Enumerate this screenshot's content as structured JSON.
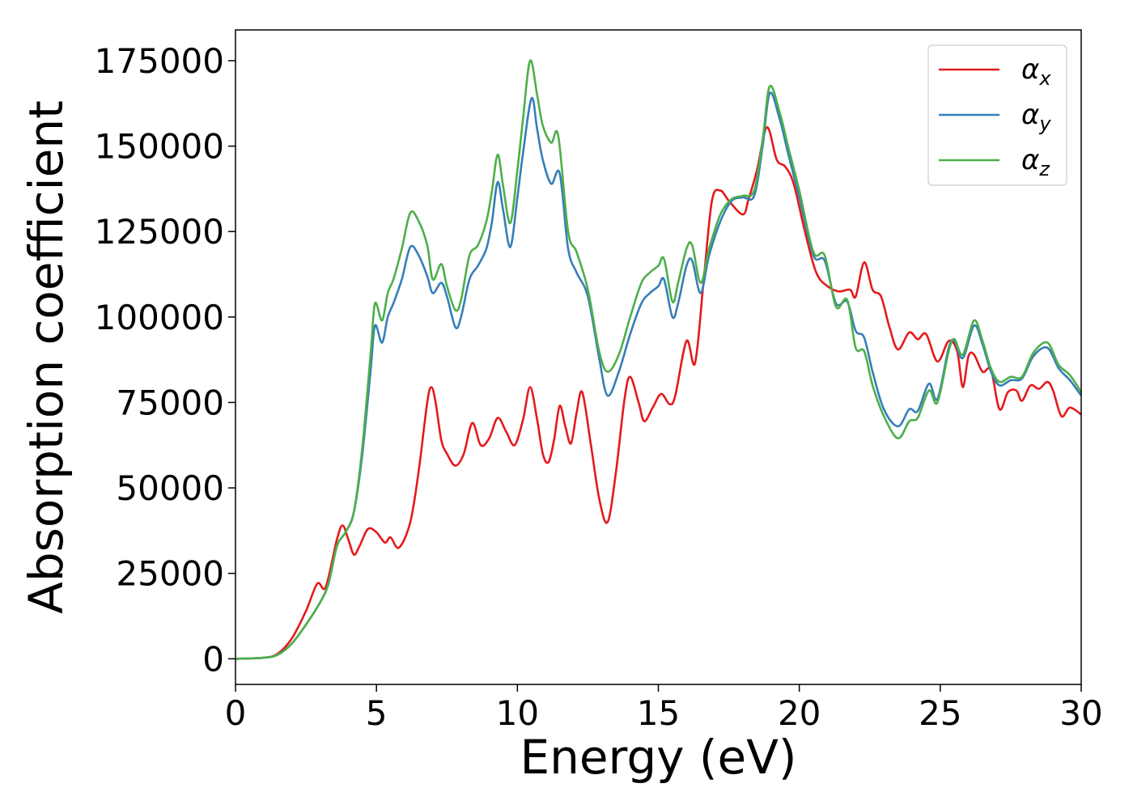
{
  "chart_data": {
    "type": "line",
    "xlabel": "Energy (eV)",
    "ylabel": "Absorption coefficient",
    "xlim": [
      0,
      30
    ],
    "ylim": [
      -7500,
      184000
    ],
    "xticks": [
      0,
      5,
      10,
      15,
      20,
      25,
      30
    ],
    "xtick_labels": [
      "0",
      "5",
      "10",
      "15",
      "20",
      "25",
      "30"
    ],
    "yticks": [
      0,
      25000,
      50000,
      75000,
      100000,
      125000,
      150000,
      175000
    ],
    "ytick_labels": [
      "0",
      "25000",
      "50000",
      "75000",
      "100000",
      "125000",
      "150000",
      "175000"
    ],
    "grid": false,
    "legend_position": "top-right",
    "series": [
      {
        "name": "α",
        "sub": "x",
        "color": "#e41a1c",
        "points": [
          [
            0,
            0
          ],
          [
            1,
            300
          ],
          [
            1.5,
            1500
          ],
          [
            2,
            6000
          ],
          [
            2.5,
            14000
          ],
          [
            2.9,
            22000
          ],
          [
            3.2,
            21000
          ],
          [
            3.6,
            35000
          ],
          [
            3.8,
            39000
          ],
          [
            4.0,
            35000
          ],
          [
            4.2,
            30500
          ],
          [
            4.4,
            33000
          ],
          [
            4.7,
            38000
          ],
          [
            5.0,
            37000
          ],
          [
            5.3,
            34000
          ],
          [
            5.5,
            35500
          ],
          [
            5.8,
            32500
          ],
          [
            6.2,
            40000
          ],
          [
            6.5,
            55000
          ],
          [
            6.8,
            75000
          ],
          [
            6.95,
            79500
          ],
          [
            7.1,
            75000
          ],
          [
            7.3,
            64000
          ],
          [
            7.5,
            60000
          ],
          [
            7.8,
            56500
          ],
          [
            8.1,
            60000
          ],
          [
            8.4,
            69000
          ],
          [
            8.7,
            62500
          ],
          [
            9.0,
            64500
          ],
          [
            9.3,
            70500
          ],
          [
            9.6,
            66500
          ],
          [
            9.9,
            62500
          ],
          [
            10.2,
            70000
          ],
          [
            10.45,
            79500
          ],
          [
            10.7,
            70000
          ],
          [
            10.9,
            60000
          ],
          [
            11.1,
            57500
          ],
          [
            11.3,
            64000
          ],
          [
            11.5,
            74000
          ],
          [
            11.7,
            68000
          ],
          [
            11.9,
            63000
          ],
          [
            12.1,
            72000
          ],
          [
            12.3,
            78000
          ],
          [
            12.6,
            63000
          ],
          [
            12.9,
            47000
          ],
          [
            13.2,
            40000
          ],
          [
            13.5,
            55000
          ],
          [
            13.8,
            76000
          ],
          [
            14.0,
            82500
          ],
          [
            14.3,
            75000
          ],
          [
            14.5,
            69500
          ],
          [
            14.8,
            73500
          ],
          [
            15.1,
            77500
          ],
          [
            15.4,
            74500
          ],
          [
            15.6,
            77000
          ],
          [
            16.0,
            93000
          ],
          [
            16.3,
            86500
          ],
          [
            16.6,
            110000
          ],
          [
            16.9,
            134000
          ],
          [
            17.2,
            137000
          ],
          [
            17.5,
            134000
          ],
          [
            18.0,
            130000
          ],
          [
            18.2,
            134500
          ],
          [
            18.5,
            143000
          ],
          [
            18.85,
            155500
          ],
          [
            19.2,
            146000
          ],
          [
            19.5,
            144000
          ],
          [
            19.8,
            139000
          ],
          [
            20.2,
            125000
          ],
          [
            20.6,
            113000
          ],
          [
            21.0,
            109000
          ],
          [
            21.4,
            107500
          ],
          [
            21.8,
            108000
          ],
          [
            22.0,
            106000
          ],
          [
            22.3,
            116000
          ],
          [
            22.6,
            108000
          ],
          [
            22.9,
            106000
          ],
          [
            23.2,
            97000
          ],
          [
            23.5,
            90500
          ],
          [
            23.9,
            95500
          ],
          [
            24.2,
            93500
          ],
          [
            24.5,
            95000
          ],
          [
            24.9,
            87000
          ],
          [
            25.3,
            93000
          ],
          [
            25.6,
            90000
          ],
          [
            25.8,
            79500
          ],
          [
            26.0,
            88500
          ],
          [
            26.2,
            89000
          ],
          [
            26.5,
            84000
          ],
          [
            26.8,
            84500
          ],
          [
            27.1,
            73000
          ],
          [
            27.4,
            78000
          ],
          [
            27.7,
            78500
          ],
          [
            27.9,
            75500
          ],
          [
            28.2,
            80000
          ],
          [
            28.5,
            79000
          ],
          [
            28.8,
            81000
          ],
          [
            29.0,
            78500
          ],
          [
            29.3,
            71000
          ],
          [
            29.6,
            73500
          ],
          [
            30.0,
            71500
          ]
        ]
      },
      {
        "name": "α",
        "sub": "y",
        "color": "#377eb8",
        "points": [
          [
            0,
            0
          ],
          [
            1,
            300
          ],
          [
            1.5,
            1200
          ],
          [
            2,
            4500
          ],
          [
            2.5,
            10000
          ],
          [
            3.0,
            16500
          ],
          [
            3.3,
            22000
          ],
          [
            3.6,
            33000
          ],
          [
            3.9,
            37000
          ],
          [
            4.2,
            43000
          ],
          [
            4.5,
            60000
          ],
          [
            4.8,
            85000
          ],
          [
            4.95,
            97500
          ],
          [
            5.2,
            92500
          ],
          [
            5.4,
            100000
          ],
          [
            5.6,
            104000
          ],
          [
            5.9,
            111000
          ],
          [
            6.2,
            120500
          ],
          [
            6.5,
            118000
          ],
          [
            6.8,
            112000
          ],
          [
            7.0,
            107000
          ],
          [
            7.3,
            110000
          ],
          [
            7.5,
            106000
          ],
          [
            7.8,
            97000
          ],
          [
            8.0,
            100000
          ],
          [
            8.3,
            111000
          ],
          [
            8.6,
            115000
          ],
          [
            8.9,
            120000
          ],
          [
            9.1,
            128000
          ],
          [
            9.3,
            139500
          ],
          [
            9.5,
            131000
          ],
          [
            9.75,
            120500
          ],
          [
            10.0,
            135000
          ],
          [
            10.2,
            148000
          ],
          [
            10.5,
            164000
          ],
          [
            10.7,
            155000
          ],
          [
            10.9,
            146000
          ],
          [
            11.2,
            139000
          ],
          [
            11.5,
            142000
          ],
          [
            11.8,
            120000
          ],
          [
            12.1,
            113000
          ],
          [
            12.5,
            106000
          ],
          [
            12.9,
            88000
          ],
          [
            13.2,
            77000
          ],
          [
            13.6,
            84000
          ],
          [
            14.0,
            95000
          ],
          [
            14.4,
            104000
          ],
          [
            14.7,
            107000
          ],
          [
            15.0,
            109000
          ],
          [
            15.2,
            111000
          ],
          [
            15.5,
            100000
          ],
          [
            15.7,
            104000
          ],
          [
            16.0,
            115000
          ],
          [
            16.2,
            116500
          ],
          [
            16.5,
            107000
          ],
          [
            16.8,
            118000
          ],
          [
            17.2,
            128000
          ],
          [
            17.6,
            134000
          ],
          [
            18.0,
            135000
          ],
          [
            18.4,
            135500
          ],
          [
            18.7,
            150000
          ],
          [
            18.95,
            165500
          ],
          [
            19.3,
            158000
          ],
          [
            19.6,
            148000
          ],
          [
            20.0,
            135000
          ],
          [
            20.5,
            118000
          ],
          [
            20.9,
            116500
          ],
          [
            21.3,
            104000
          ],
          [
            21.7,
            104500
          ],
          [
            22.0,
            96000
          ],
          [
            22.3,
            94000
          ],
          [
            22.6,
            84000
          ],
          [
            23.0,
            73000
          ],
          [
            23.5,
            68000
          ],
          [
            23.9,
            73000
          ],
          [
            24.2,
            72500
          ],
          [
            24.6,
            80500
          ],
          [
            24.9,
            76000
          ],
          [
            25.3,
            91000
          ],
          [
            25.5,
            93000
          ],
          [
            25.8,
            88000
          ],
          [
            26.2,
            97500
          ],
          [
            26.5,
            92000
          ],
          [
            26.8,
            84000
          ],
          [
            27.1,
            80000
          ],
          [
            27.5,
            81500
          ],
          [
            27.9,
            82000
          ],
          [
            28.3,
            88500
          ],
          [
            28.8,
            91000
          ],
          [
            29.2,
            85000
          ],
          [
            29.6,
            81500
          ],
          [
            30.0,
            77000
          ]
        ]
      },
      {
        "name": "α",
        "sub": "z",
        "color": "#4daf4a",
        "points": [
          [
            0,
            0
          ],
          [
            1,
            300
          ],
          [
            1.5,
            1200
          ],
          [
            2,
            4500
          ],
          [
            2.5,
            10000
          ],
          [
            3.0,
            16500
          ],
          [
            3.3,
            22000
          ],
          [
            3.6,
            33000
          ],
          [
            3.9,
            37000
          ],
          [
            4.2,
            43000
          ],
          [
            4.5,
            62000
          ],
          [
            4.8,
            90000
          ],
          [
            4.95,
            104000
          ],
          [
            5.2,
            99000
          ],
          [
            5.4,
            107000
          ],
          [
            5.6,
            111000
          ],
          [
            5.9,
            120000
          ],
          [
            6.2,
            130500
          ],
          [
            6.5,
            128000
          ],
          [
            6.8,
            121000
          ],
          [
            7.0,
            111000
          ],
          [
            7.3,
            115500
          ],
          [
            7.5,
            109000
          ],
          [
            7.8,
            102000
          ],
          [
            8.0,
            105000
          ],
          [
            8.3,
            118000
          ],
          [
            8.6,
            121000
          ],
          [
            8.9,
            128000
          ],
          [
            9.1,
            137000
          ],
          [
            9.3,
            147500
          ],
          [
            9.5,
            138000
          ],
          [
            9.75,
            127500
          ],
          [
            10.0,
            143000
          ],
          [
            10.2,
            158000
          ],
          [
            10.45,
            175000
          ],
          [
            10.7,
            165000
          ],
          [
            10.9,
            156000
          ],
          [
            11.2,
            151000
          ],
          [
            11.45,
            153000
          ],
          [
            11.8,
            125000
          ],
          [
            12.1,
            119000
          ],
          [
            12.5,
            108000
          ],
          [
            12.9,
            90000
          ],
          [
            13.2,
            84000
          ],
          [
            13.6,
            89000
          ],
          [
            14.0,
            100000
          ],
          [
            14.4,
            110000
          ],
          [
            14.7,
            113000
          ],
          [
            15.0,
            115000
          ],
          [
            15.2,
            117000
          ],
          [
            15.5,
            104500
          ],
          [
            15.7,
            110000
          ],
          [
            16.0,
            120000
          ],
          [
            16.2,
            121000
          ],
          [
            16.5,
            110000
          ],
          [
            16.8,
            120000
          ],
          [
            17.2,
            130000
          ],
          [
            17.6,
            134500
          ],
          [
            18.0,
            135500
          ],
          [
            18.4,
            137000
          ],
          [
            18.7,
            152000
          ],
          [
            18.95,
            167500
          ],
          [
            19.3,
            160000
          ],
          [
            19.6,
            150000
          ],
          [
            20.0,
            137000
          ],
          [
            20.5,
            119000
          ],
          [
            20.9,
            118000
          ],
          [
            21.3,
            103000
          ],
          [
            21.7,
            105000
          ],
          [
            22.0,
            91000
          ],
          [
            22.3,
            90000
          ],
          [
            22.6,
            80000
          ],
          [
            23.0,
            71000
          ],
          [
            23.5,
            64500
          ],
          [
            23.9,
            69500
          ],
          [
            24.2,
            70500
          ],
          [
            24.6,
            78500
          ],
          [
            24.9,
            75000
          ],
          [
            25.3,
            90000
          ],
          [
            25.5,
            93500
          ],
          [
            25.8,
            89000
          ],
          [
            26.2,
            99000
          ],
          [
            26.5,
            93000
          ],
          [
            26.8,
            85000
          ],
          [
            27.1,
            81000
          ],
          [
            27.5,
            82500
          ],
          [
            27.9,
            82500
          ],
          [
            28.3,
            89500
          ],
          [
            28.8,
            92500
          ],
          [
            29.2,
            86000
          ],
          [
            29.6,
            83000
          ],
          [
            30.0,
            78000
          ]
        ]
      }
    ]
  }
}
